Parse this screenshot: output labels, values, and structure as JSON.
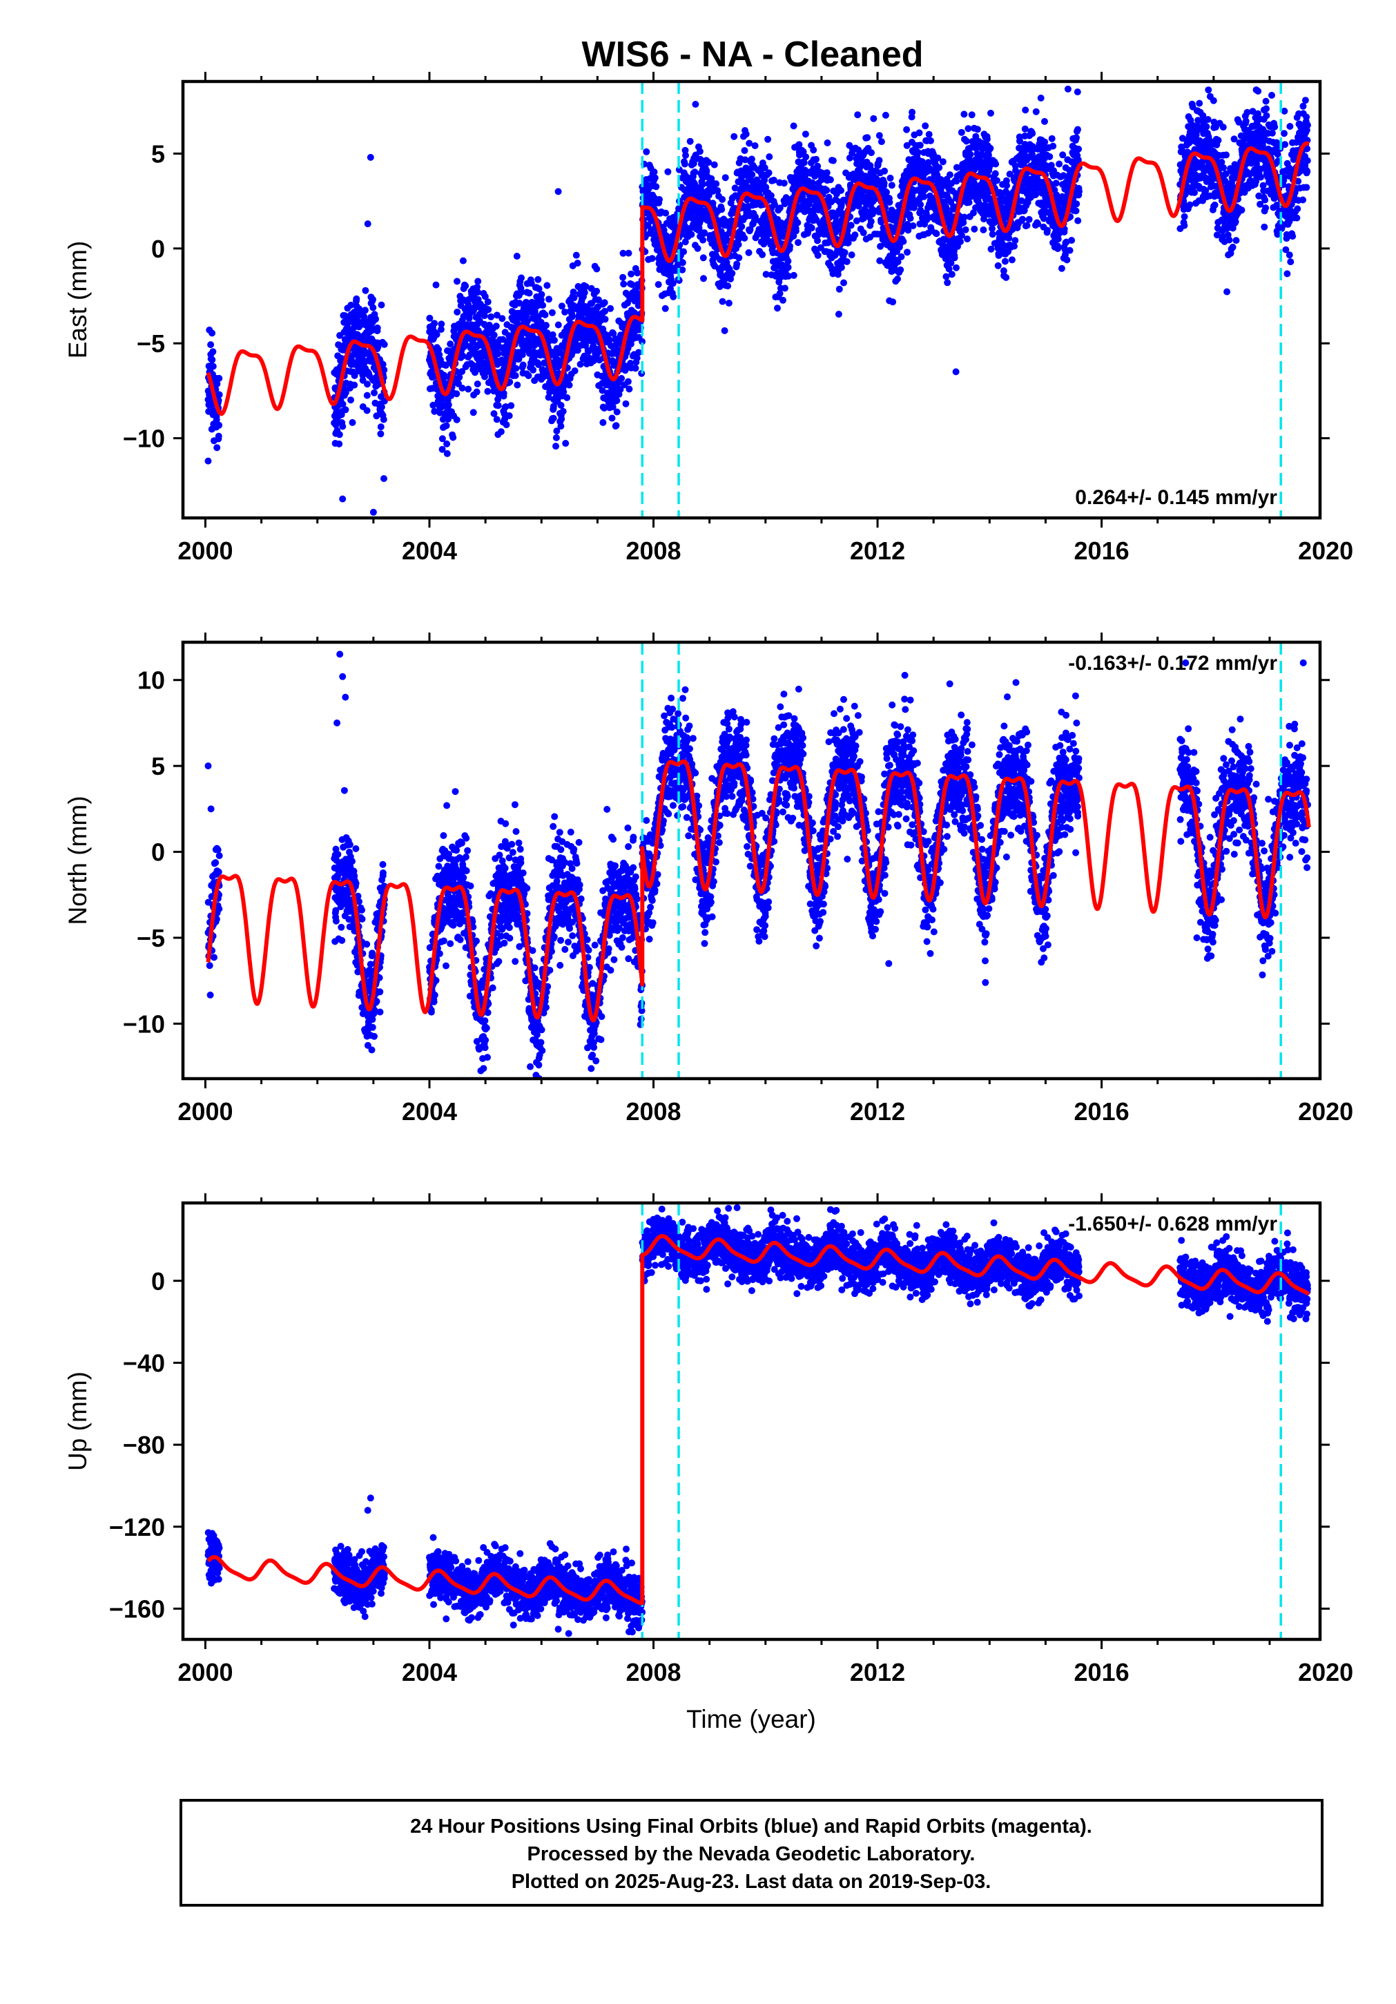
{
  "title": "WIS6  - NA - Cleaned",
  "xlabel": "Time (year)",
  "colors": {
    "final_orbits": "#0000ff",
    "model": "#ff0000",
    "offset_lines": "#00e5ee",
    "frame": "#000000"
  },
  "footer": {
    "line1": "24 Hour Positions Using Final Orbits (blue) and Rapid Orbits (magenta).",
    "line2": "Processed by the Nevada Geodetic Laboratory.",
    "line3": "Plotted on 2025-Aug-23. Last data on 2019-Sep-03."
  },
  "chart_data": [
    {
      "type": "scatter",
      "name": "east",
      "ylabel": "East (mm)",
      "rate": "0.264+/- 0.145 mm/yr",
      "rate_position": "bottom-right",
      "xlim": [
        1999.6,
        2019.9
      ],
      "ylim": [
        -14.2,
        8.8
      ],
      "xticks": [
        2000,
        2004,
        2008,
        2012,
        2016,
        2020
      ],
      "yticks": [
        -10,
        -5,
        0,
        5
      ],
      "ytick_labels": [
        "−10",
        "−5",
        "0",
        "5"
      ],
      "offsets": [
        2007.8,
        2008.45,
        2019.2
      ],
      "data_segments": [
        [
          2000.05,
          2000.25
        ],
        [
          2002.3,
          2003.2
        ],
        [
          2004.0,
          2007.85
        ],
        [
          2007.85,
          2015.6
        ],
        [
          2017.4,
          2019.68
        ]
      ],
      "model": {
        "break": 2007.8,
        "pre": {
          "t0": 2000.0,
          "b": -6.8,
          "rate": 0.26
        },
        "post": {
          "t0": 2007.8,
          "b": 1.2,
          "rate": 0.264
        },
        "annual_amp": 1.5,
        "annual_phase": 3.0,
        "semi_amp": 0.5,
        "semi_phase": 1.0,
        "scatter_sd": 1.3
      },
      "outliers": [
        [
          2002.95,
          4.8
        ],
        [
          2002.9,
          1.3
        ],
        [
          2002.45,
          -13.2
        ],
        [
          2003.0,
          -13.9
        ],
        [
          2006.3,
          3.0
        ],
        [
          2008.75,
          7.6
        ],
        [
          2013.4,
          -6.5
        ],
        [
          2015.4,
          8.4
        ],
        [
          2000.05,
          -11.2
        ],
        [
          2017.9,
          6.8
        ]
      ]
    },
    {
      "type": "scatter",
      "name": "north",
      "ylabel": "North (mm)",
      "rate": "-0.163+/- 0.172 mm/yr",
      "rate_position": "top-right",
      "xlim": [
        1999.6,
        2019.9
      ],
      "ylim": [
        -13.2,
        12.2
      ],
      "xticks": [
        2000,
        2004,
        2008,
        2012,
        2016,
        2020
      ],
      "yticks": [
        -10,
        -5,
        0,
        5,
        10
      ],
      "ytick_labels": [
        "−10",
        "−5",
        "0",
        "5",
        "10"
      ],
      "offsets": [
        2007.8,
        2008.45,
        2019.2
      ],
      "data_segments": [
        [
          2000.05,
          2000.25
        ],
        [
          2002.3,
          2003.2
        ],
        [
          2004.0,
          2007.85
        ],
        [
          2007.85,
          2015.6
        ],
        [
          2017.4,
          2019.68
        ]
      ],
      "model": {
        "break": 2007.8,
        "pre": {
          "t0": 2000.0,
          "b": -3.9,
          "rate": -0.16
        },
        "post": {
          "t0": 2007.8,
          "b": 2.8,
          "rate": -0.163
        },
        "annual_amp": 3.6,
        "annual_phase": -1.1,
        "semi_amp": 1.2,
        "semi_phase": -0.6,
        "scatter_sd": 1.5
      },
      "outliers": [
        [
          2002.4,
          11.5
        ],
        [
          2002.45,
          10.2
        ],
        [
          2002.5,
          9.0
        ],
        [
          2002.35,
          7.5
        ],
        [
          2000.05,
          5.0
        ],
        [
          2000.1,
          2.5
        ],
        [
          2017.5,
          11.0
        ],
        [
          2019.6,
          11.0
        ],
        [
          2005.8,
          -12.5
        ],
        [
          2012.2,
          -6.5
        ],
        [
          2017.7,
          -5.0
        ]
      ]
    },
    {
      "type": "scatter",
      "name": "up",
      "ylabel": "Up (mm)",
      "rate": "-1.650+/- 0.628 mm/yr",
      "rate_position": "top-right",
      "xlim": [
        1999.6,
        2019.9
      ],
      "ylim": [
        -175,
        38
      ],
      "xticks": [
        2000,
        2004,
        2008,
        2012,
        2016,
        2020
      ],
      "yticks": [
        -160,
        -120,
        -80,
        -40,
        0
      ],
      "ytick_labels": [
        "−160",
        "−120",
        "−80",
        "−40",
        "0"
      ],
      "offsets": [
        2007.8,
        2008.45,
        2019.2
      ],
      "data_segments": [
        [
          2000.05,
          2000.25
        ],
        [
          2002.3,
          2003.2
        ],
        [
          2004.0,
          2007.85
        ],
        [
          2007.85,
          2015.6
        ],
        [
          2017.4,
          2019.68
        ]
      ],
      "model": {
        "break": 2007.8,
        "pre": {
          "t0": 2000.0,
          "b": -140.0,
          "rate": -1.65
        },
        "post": {
          "t0": 2007.8,
          "b": 17.0,
          "rate": -1.65
        },
        "annual_amp": 4.5,
        "annual_phase": 0.3,
        "semi_amp": 1.2,
        "semi_phase": 0.0,
        "scatter_sd": 6.0
      },
      "outliers": [
        [
          2002.95,
          -106
        ],
        [
          2002.9,
          -112
        ],
        [
          2008.0,
          30
        ],
        [
          2008.15,
          35
        ],
        [
          2012.7,
          27
        ],
        [
          2005.5,
          -168
        ],
        [
          2006.3,
          -170
        ],
        [
          2004.3,
          -165
        ]
      ]
    }
  ]
}
